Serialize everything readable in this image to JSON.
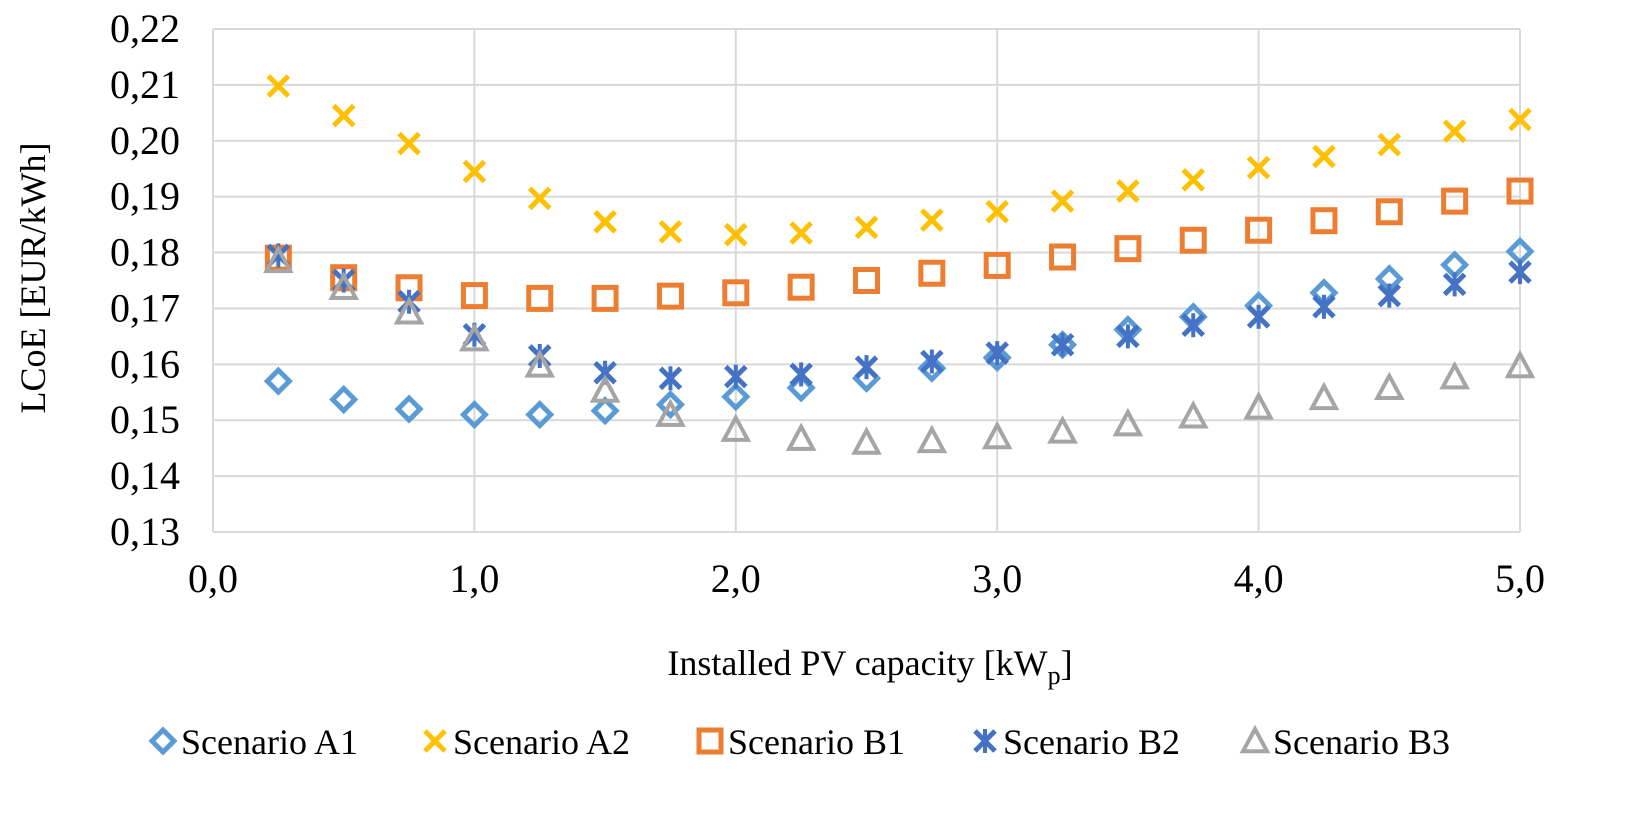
{
  "chart_data": {
    "type": "scatter",
    "title": "",
    "xlabel": "Installed PV capacity [kW",
    "xlabel_subscript": "p",
    "xlabel_suffix": "]",
    "ylabel": "LCoE [EUR/kWh]",
    "xlim": [
      0,
      5
    ],
    "ylim": [
      0.13,
      0.22
    ],
    "x_ticks": [
      0,
      1,
      2,
      3,
      4,
      5
    ],
    "x_tick_labels": [
      "0,0",
      "1,0",
      "2,0",
      "3,0",
      "4,0",
      "5,0"
    ],
    "y_ticks": [
      0.13,
      0.14,
      0.15,
      0.16,
      0.17,
      0.18,
      0.19,
      0.2,
      0.21,
      0.22
    ],
    "y_tick_labels": [
      "0,13",
      "0,14",
      "0,15",
      "0,16",
      "0,17",
      "0,18",
      "0,19",
      "0,20",
      "0,21",
      "0,22"
    ],
    "grid": true,
    "legend_position": "bottom",
    "x": [
      0.25,
      0.5,
      0.75,
      1.0,
      1.25,
      1.5,
      1.75,
      2.0,
      2.25,
      2.5,
      2.75,
      3.0,
      3.25,
      3.5,
      3.75,
      4.0,
      4.25,
      4.5,
      4.75,
      5.0
    ],
    "series": [
      {
        "name": "Scenario A1",
        "marker": "diamond",
        "color": "#5B9BD5",
        "values": [
          0.157,
          0.1537,
          0.152,
          0.151,
          0.151,
          0.1517,
          0.1528,
          0.1542,
          0.1558,
          0.1575,
          0.1593,
          0.1612,
          0.1635,
          0.1662,
          0.1685,
          0.1705,
          0.1728,
          0.1753,
          0.1778,
          0.1802
        ]
      },
      {
        "name": "Scenario A2",
        "marker": "x",
        "color": "#FFC000",
        "values": [
          0.2098,
          0.2045,
          0.1995,
          0.1945,
          0.1897,
          0.1855,
          0.1837,
          0.1832,
          0.1835,
          0.1845,
          0.1858,
          0.1873,
          0.1892,
          0.191,
          0.193,
          0.1952,
          0.1972,
          0.1993,
          0.2017,
          0.2038
        ]
      },
      {
        "name": "Scenario B1",
        "marker": "square",
        "color": "#ED7D31",
        "values": [
          0.179,
          0.1755,
          0.1737,
          0.1723,
          0.1718,
          0.1718,
          0.1722,
          0.1728,
          0.1738,
          0.175,
          0.1763,
          0.1777,
          0.1792,
          0.1807,
          0.1822,
          0.184,
          0.1857,
          0.1873,
          0.1892,
          0.191
        ]
      },
      {
        "name": "Scenario B2",
        "marker": "asterisk",
        "color": "#4472C4",
        "values": [
          0.1795,
          0.175,
          0.1712,
          0.1653,
          0.1615,
          0.1585,
          0.1575,
          0.1578,
          0.1582,
          0.1595,
          0.1605,
          0.162,
          0.1635,
          0.165,
          0.167,
          0.1685,
          0.1703,
          0.1723,
          0.1743,
          0.1765
        ]
      },
      {
        "name": "Scenario B3",
        "marker": "triangle",
        "color": "#A5A5A5",
        "values": [
          0.1785,
          0.1737,
          0.1693,
          0.1645,
          0.1598,
          0.1553,
          0.151,
          0.1483,
          0.1467,
          0.146,
          0.1463,
          0.147,
          0.148,
          0.1493,
          0.1507,
          0.1523,
          0.154,
          0.1558,
          0.1577,
          0.1597
        ]
      }
    ]
  }
}
